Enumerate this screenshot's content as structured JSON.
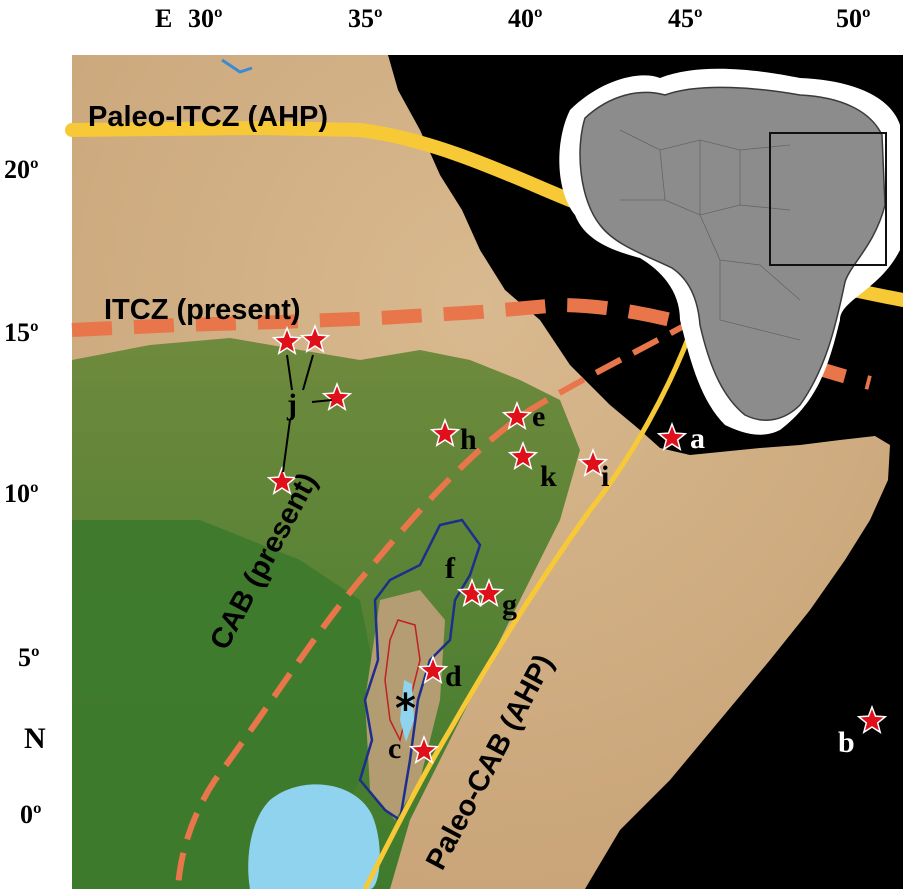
{
  "axis": {
    "lon_prefix": "E",
    "lon_ticks": [
      "30º",
      "35º",
      "40º",
      "45º",
      "50º"
    ],
    "lat_ticks": [
      "20º",
      "15º",
      "10º",
      "5º",
      "0º"
    ],
    "lat_axis_label": "N"
  },
  "lines": {
    "paleo_itcz": "Paleo-ITCZ (AHP)",
    "itcz_present": "ITCZ (present)",
    "cab_present": "CAB (present)",
    "paleo_cab": "Paleo-CAB (AHP)"
  },
  "sites": [
    "a",
    "b",
    "c",
    "d",
    "e",
    "f",
    "g",
    "h",
    "i",
    "j",
    "k"
  ],
  "colors": {
    "paleo_line": "#f7c936",
    "present_line": "#e8764a",
    "star_fill": "#e0101a",
    "ocean": "#000000",
    "inset_land": "#8c8c8c"
  },
  "icons": {
    "site_marker": "star-icon",
    "site_cluster": "asterisk-icon"
  }
}
